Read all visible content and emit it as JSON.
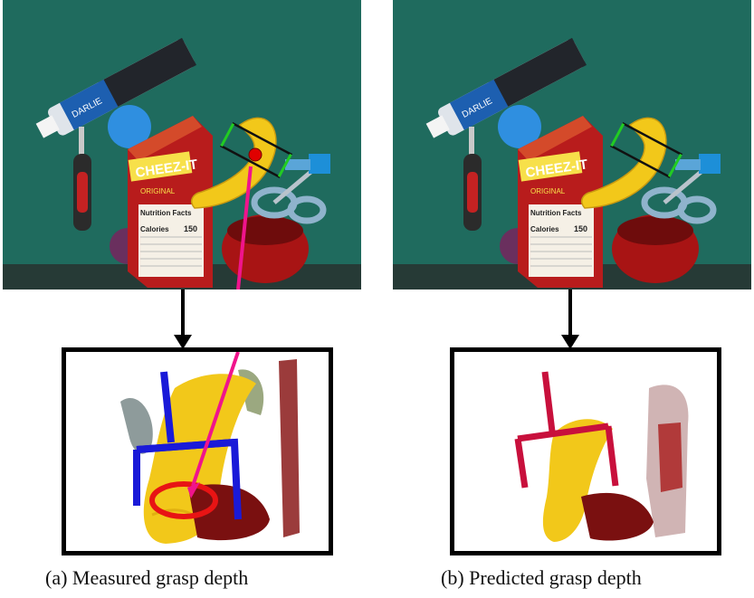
{
  "figure": {
    "panel_a": {
      "caption_marker": "(a)",
      "caption_text": "Measured grasp depth",
      "box_brand": "CHEEZ-IT",
      "box_label": "ORIGINAL",
      "nutrition_title": "Nutrition Facts",
      "calories_label": "Calories",
      "calories_value": "150",
      "tube_brand": "DARLIE"
    },
    "panel_b": {
      "caption_marker": "(b)",
      "caption_text": "Predicted grasp depth",
      "box_brand": "CHEEZ-IT",
      "box_label": "ORIGINAL",
      "nutrition_title": "Nutrition Facts",
      "calories_label": "Calories",
      "calories_value": "150",
      "tube_brand": "DARLIE"
    }
  },
  "colors": {
    "table": "#1f6b5e",
    "gripper_measured": "#1a1ad8",
    "gripper_predicted": "#c8103c",
    "pointer_arrow": "#f0148c",
    "highlight_ellipse": "#e81414",
    "banana": "#f2c81a",
    "box_red": "#b81c1c"
  }
}
